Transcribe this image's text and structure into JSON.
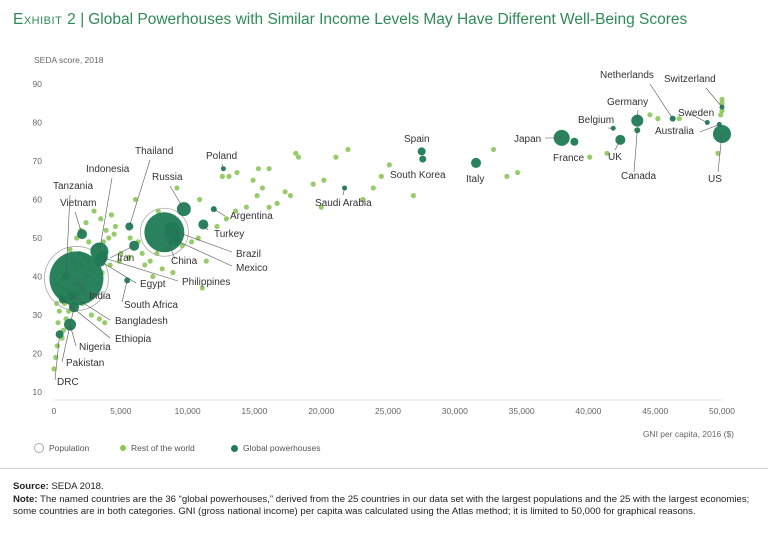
{
  "header": {
    "exhibit": "Exhibit 2",
    "separator": "|",
    "title": "Global Powerhouses with Similar Income Levels May Have Different Well-Being Scores"
  },
  "colors": {
    "title": "#2e8b57",
    "powerhouse": "#1f7a55",
    "rest": "#8cc65a",
    "population_outline": "#aaaaaa"
  },
  "chart_data": {
    "type": "scatter",
    "ylabel": "SEDA score, 2018",
    "xlabel": "GNI per capita, 2016 ($)",
    "xlim": [
      0,
      50000
    ],
    "ylim": [
      10,
      90
    ],
    "xticks": [
      0,
      5000,
      10000,
      15000,
      20000,
      25000,
      30000,
      35000,
      40000,
      45000,
      50000
    ],
    "xtick_labels": [
      "0",
      "5,000",
      "10,000",
      "15,000",
      "20,000",
      "25,000",
      "30,000",
      "35,000",
      "40,000",
      "45,000",
      "50,000"
    ],
    "yticks": [
      10,
      20,
      30,
      40,
      50,
      60,
      70,
      80,
      90
    ],
    "legend": [
      "Population",
      "Rest of the world",
      "Global powerhouses"
    ],
    "powerhouses": [
      {
        "name": "DRC",
        "x": 420,
        "y": 25,
        "r": 4
      },
      {
        "name": "Pakistan",
        "x": 1500,
        "y": 32,
        "r": 5
      },
      {
        "name": "Nigeria",
        "x": 1200,
        "y": 27.5,
        "r": 6
      },
      {
        "name": "Ethiopia",
        "x": 660,
        "y": 34,
        "r": 4
      },
      {
        "name": "Bangladesh",
        "x": 1330,
        "y": 35,
        "r": 5
      },
      {
        "name": "India",
        "x": 1680,
        "y": 39.5,
        "r": 27
      },
      {
        "name": "South Africa",
        "x": 5480,
        "y": 39,
        "r": 3
      },
      {
        "name": "Egypt",
        "x": 3460,
        "y": 44,
        "r": 5.5
      },
      {
        "name": "Philippines",
        "x": 3580,
        "y": 45,
        "r": 6
      },
      {
        "name": "Iran",
        "x": 6000,
        "y": 48,
        "r": 5
      },
      {
        "name": "Mexico",
        "x": 9040,
        "y": 49.5,
        "r": 6
      },
      {
        "name": "China",
        "x": 8260,
        "y": 51.5,
        "r": 20
      },
      {
        "name": "Brazil",
        "x": 8840,
        "y": 52,
        "r": 8
      },
      {
        "name": "Turkey",
        "x": 11180,
        "y": 53.5,
        "r": 5
      },
      {
        "name": "Argentina",
        "x": 11960,
        "y": 57.5,
        "r": 3
      },
      {
        "name": "Thailand",
        "x": 5640,
        "y": 53,
        "r": 4
      },
      {
        "name": "Indonesia",
        "x": 3400,
        "y": 46.5,
        "r": 9
      },
      {
        "name": "Vietnam",
        "x": 2100,
        "y": 51,
        "r": 5
      },
      {
        "name": "Tanzania",
        "x": 900,
        "y": 40,
        "r": 4
      },
      {
        "name": "Russia",
        "x": 9720,
        "y": 57.5,
        "r": 7
      },
      {
        "name": "Poland",
        "x": 12680,
        "y": 68,
        "r": 2.5
      },
      {
        "name": "Saudi Arabia",
        "x": 21750,
        "y": 63,
        "r": 2.5
      },
      {
        "name": "South Korea",
        "x": 27600,
        "y": 70.5,
        "r": 3.5
      },
      {
        "name": "Spain",
        "x": 27520,
        "y": 72.5,
        "r": 4
      },
      {
        "name": "Italy",
        "x": 31590,
        "y": 69.5,
        "r": 5
      },
      {
        "name": "Japan",
        "x": 38000,
        "y": 76,
        "r": 8
      },
      {
        "name": "France",
        "x": 38950,
        "y": 75,
        "r": 4
      },
      {
        "name": "Belgium",
        "x": 41860,
        "y": 78.5,
        "r": 2.5
      },
      {
        "name": "UK",
        "x": 42390,
        "y": 75.5,
        "r": 5
      },
      {
        "name": "Germany",
        "x": 43660,
        "y": 80.5,
        "r": 6
      },
      {
        "name": "Canada",
        "x": 43660,
        "y": 78,
        "r": 3
      },
      {
        "name": "Netherlands",
        "x": 46310,
        "y": 81,
        "r": 3
      },
      {
        "name": "Sweden",
        "x": 48900,
        "y": 80,
        "r": 2.5
      },
      {
        "name": "Australia",
        "x": 49800,
        "y": 79.5,
        "r": 2.5
      },
      {
        "name": "Switzerland",
        "x": 50000,
        "y": 84,
        "r": 2.5
      },
      {
        "name": "US",
        "x": 50000,
        "y": 77,
        "r": 9
      }
    ],
    "rest_of_world": [
      [
        0,
        16
      ],
      [
        130,
        19
      ],
      [
        250,
        22
      ],
      [
        600,
        24
      ],
      [
        700,
        26
      ],
      [
        300,
        28
      ],
      [
        900,
        29
      ],
      [
        400,
        31
      ],
      [
        1100,
        31
      ],
      [
        200,
        33
      ],
      [
        800,
        33
      ],
      [
        1300,
        32
      ],
      [
        500,
        35
      ],
      [
        1000,
        36
      ],
      [
        1400,
        35
      ],
      [
        700,
        37
      ],
      [
        300,
        38
      ],
      [
        1600,
        38
      ],
      [
        1900,
        36
      ],
      [
        2200,
        37
      ],
      [
        1100,
        40
      ],
      [
        2500,
        40
      ],
      [
        1700,
        42
      ],
      [
        2100,
        43
      ],
      [
        2700,
        42
      ],
      [
        1400,
        44
      ],
      [
        2300,
        45
      ],
      [
        3100,
        44
      ],
      [
        1900,
        46
      ],
      [
        2900,
        47
      ],
      [
        3300,
        48
      ],
      [
        2600,
        49
      ],
      [
        3700,
        49
      ],
      [
        4100,
        50
      ],
      [
        4500,
        51
      ],
      [
        3900,
        52
      ],
      [
        4600,
        53
      ],
      [
        3500,
        55
      ],
      [
        4300,
        56
      ],
      [
        5700,
        50
      ],
      [
        6300,
        49
      ],
      [
        5000,
        46
      ],
      [
        4200,
        43
      ],
      [
        3600,
        41
      ],
      [
        2100,
        33
      ],
      [
        2800,
        30
      ],
      [
        3400,
        29
      ],
      [
        3800,
        28
      ],
      [
        5600,
        45
      ],
      [
        6600,
        46
      ],
      [
        7200,
        44
      ],
      [
        7700,
        46
      ],
      [
        8100,
        42
      ],
      [
        8500,
        47
      ],
      [
        9600,
        48
      ],
      [
        10300,
        49
      ],
      [
        10800,
        50
      ],
      [
        11400,
        44
      ],
      [
        12200,
        53
      ],
      [
        12900,
        55
      ],
      [
        13600,
        57
      ],
      [
        14400,
        58
      ],
      [
        15200,
        61
      ],
      [
        15600,
        63
      ],
      [
        16100,
        58
      ],
      [
        16700,
        59
      ],
      [
        17300,
        62
      ],
      [
        13100,
        66
      ],
      [
        13700,
        67
      ],
      [
        14900,
        65
      ],
      [
        16100,
        68
      ],
      [
        18100,
        72
      ],
      [
        18300,
        71
      ],
      [
        19400,
        64
      ],
      [
        20200,
        65
      ],
      [
        21100,
        71
      ],
      [
        22000,
        73
      ],
      [
        23100,
        60
      ],
      [
        23900,
        63
      ],
      [
        24500,
        66
      ],
      [
        25100,
        69
      ],
      [
        26900,
        61
      ],
      [
        33900,
        66
      ],
      [
        34700,
        67
      ],
      [
        32900,
        73
      ],
      [
        40100,
        71
      ],
      [
        41400,
        72
      ],
      [
        44600,
        82
      ],
      [
        45200,
        81
      ],
      [
        46800,
        81
      ],
      [
        49700,
        72
      ],
      [
        49900,
        82
      ],
      [
        50000,
        85
      ],
      [
        50000,
        86
      ],
      [
        50000,
        83
      ],
      [
        10900,
        60
      ],
      [
        12600,
        66
      ],
      [
        9200,
        63
      ],
      [
        7800,
        57
      ],
      [
        6100,
        60
      ],
      [
        15300,
        68
      ],
      [
        20000,
        58
      ],
      [
        17700,
        61
      ],
      [
        2400,
        54
      ],
      [
        2000,
        52
      ],
      [
        3000,
        57
      ],
      [
        4900,
        44
      ],
      [
        1200,
        47
      ],
      [
        1700,
        50
      ],
      [
        2600,
        44
      ],
      [
        6800,
        43
      ],
      [
        7400,
        40
      ],
      [
        8900,
        41
      ],
      [
        11100,
        37
      ]
    ],
    "labels": [
      {
        "name": "Netherlands",
        "text": "Netherlands"
      },
      {
        "name": "Switzerland",
        "text": "Switzerland"
      },
      {
        "name": "Germany",
        "text": "Germany"
      },
      {
        "name": "Belgium",
        "text": "Belgium"
      },
      {
        "name": "Sweden",
        "text": "Sweden"
      },
      {
        "name": "Japan",
        "text": "Japan"
      },
      {
        "name": "Australia",
        "text": "Australia"
      },
      {
        "name": "Spain",
        "text": "Spain"
      },
      {
        "name": "France",
        "text": "France"
      },
      {
        "name": "UK",
        "text": "UK"
      },
      {
        "name": "Canada",
        "text": "Canada"
      },
      {
        "name": "US",
        "text": "US"
      },
      {
        "name": "South Korea",
        "text": "South Korea"
      },
      {
        "name": "Italy",
        "text": "Italy"
      },
      {
        "name": "Thailand",
        "text": "Thailand"
      },
      {
        "name": "Poland",
        "text": "Poland"
      },
      {
        "name": "Indonesia",
        "text": "Indonesia"
      },
      {
        "name": "Russia",
        "text": "Russia"
      },
      {
        "name": "Saudi Arabia",
        "text": "Saudi Arabia"
      },
      {
        "name": "Tanzania",
        "text": "Tanzania"
      },
      {
        "name": "Vietnam",
        "text": "Vietnam"
      },
      {
        "name": "Argentina",
        "text": "Argentina"
      },
      {
        "name": "Turkey",
        "text": "Turkey"
      },
      {
        "name": "Brazil",
        "text": "Brazil"
      },
      {
        "name": "Iran",
        "text": "Iran"
      },
      {
        "name": "China",
        "text": "China"
      },
      {
        "name": "Mexico",
        "text": "Mexico"
      },
      {
        "name": "Philippines",
        "text": "Philippines"
      },
      {
        "name": "Egypt",
        "text": "Egypt"
      },
      {
        "name": "India",
        "text": "India"
      },
      {
        "name": "South Africa",
        "text": "South Africa"
      },
      {
        "name": "Bangladesh",
        "text": "Bangladesh"
      },
      {
        "name": "Ethiopia",
        "text": "Ethiopia"
      },
      {
        "name": "Nigeria",
        "text": "Nigeria"
      },
      {
        "name": "Pakistan",
        "text": "Pakistan"
      },
      {
        "name": "DRC",
        "text": "DRC"
      }
    ]
  },
  "legend": {
    "population": "Population",
    "rest": "Rest of the world",
    "powerhouses": "Global powerhouses"
  },
  "footer": {
    "source_label": "Source:",
    "source_text": "SEDA 2018.",
    "note_label": "Note:",
    "note_text": "The named countries are the 36 “global powerhouses,” derived from the 25 countries in our data set with the largest populations and the 25 with the largest economies; some countries are in both categories. GNI (gross national income) per capita was calculated using the Atlas method; it is limited to 50,000 for graphical reasons."
  }
}
